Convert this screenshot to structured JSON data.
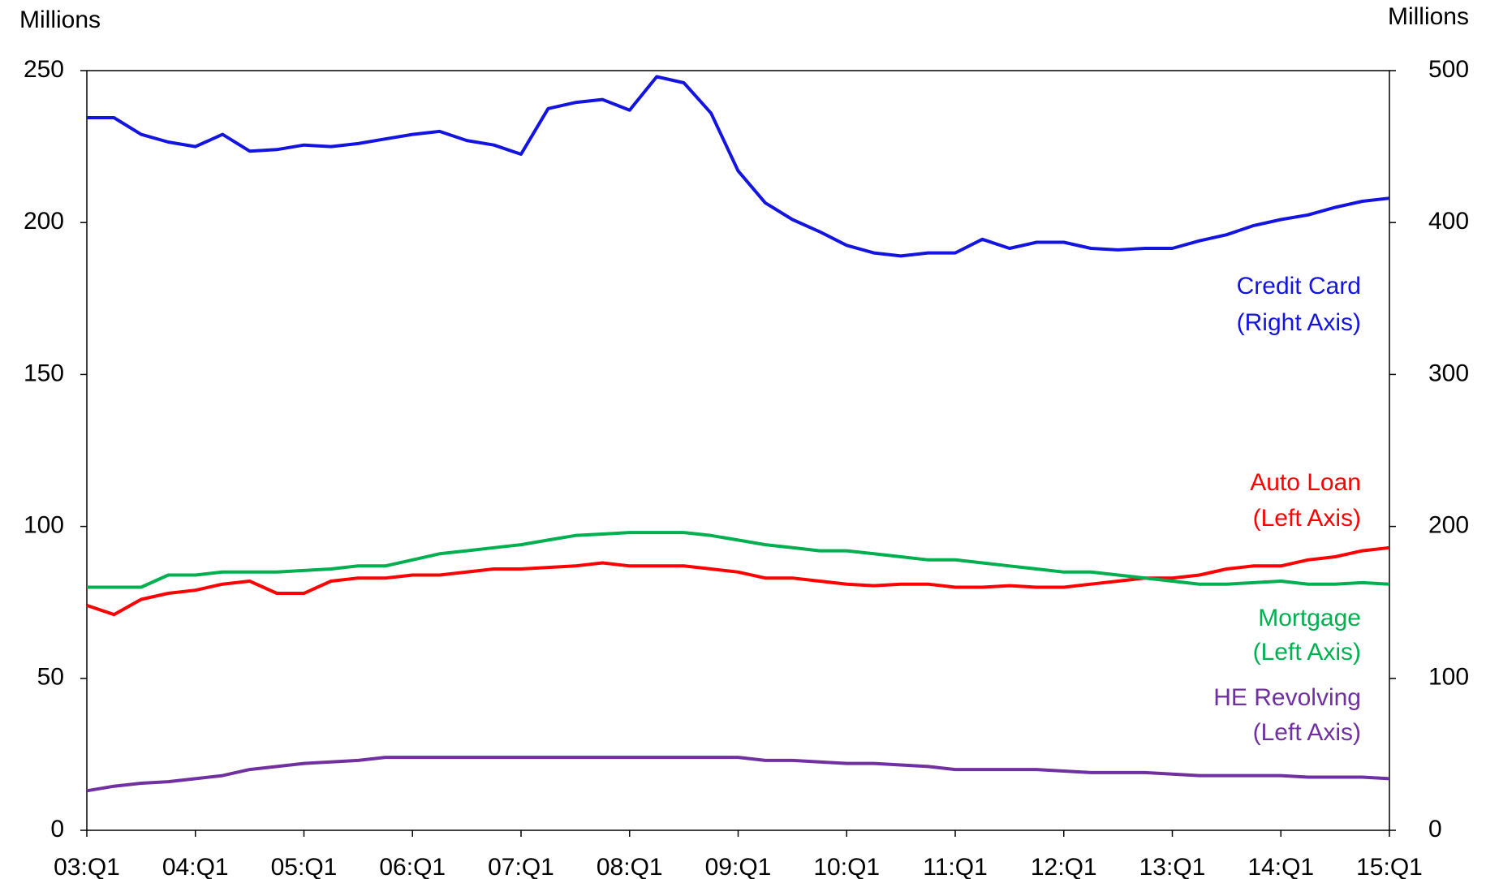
{
  "chart_data": {
    "type": "line",
    "ylabel": "Millions",
    "y2label": "Millions",
    "categories": [
      "03:Q1",
      null,
      null,
      null,
      "04:Q1",
      null,
      null,
      null,
      "05:Q1",
      null,
      null,
      null,
      "06:Q1",
      null,
      null,
      null,
      "07:Q1",
      null,
      null,
      null,
      "08:Q1",
      null,
      null,
      null,
      "09:Q1",
      null,
      null,
      null,
      "10:Q1",
      null,
      null,
      null,
      "11:Q1",
      null,
      null,
      null,
      "12:Q1",
      null,
      null,
      null,
      "13:Q1",
      null,
      null,
      null,
      "14:Q1",
      null,
      null,
      null,
      "15:Q1"
    ],
    "ylim": [
      0,
      250
    ],
    "yticks": [
      0,
      50,
      100,
      150,
      200,
      250
    ],
    "y2lim": [
      0,
      500
    ],
    "y2ticks": [
      0,
      100,
      200,
      300,
      400,
      500
    ],
    "grid": false,
    "series": [
      {
        "name": "Credit Card",
        "axis_note": "(Right Axis)",
        "color": "#1414e0",
        "axis": "y2",
        "values": [
          469,
          469,
          458,
          453,
          450,
          458,
          447,
          448,
          451,
          450,
          452,
          455,
          458,
          460,
          454,
          451,
          445,
          475,
          479,
          481,
          474,
          496,
          492,
          472,
          434,
          413,
          402,
          394,
          385,
          380,
          378,
          380,
          380,
          389,
          383,
          387,
          387,
          383,
          382,
          383,
          383,
          388,
          392,
          398,
          402,
          405,
          410,
          414,
          416
        ]
      },
      {
        "name": "Auto Loan",
        "axis_note": "(Left Axis)",
        "color": "#ff0000",
        "values": [
          74,
          71,
          76,
          78,
          79,
          81,
          82,
          78,
          78,
          82,
          83,
          83,
          84,
          84,
          85,
          86,
          86,
          86.5,
          87,
          88,
          87,
          87,
          87,
          86,
          85,
          83,
          83,
          82,
          81,
          80.5,
          81,
          81,
          80,
          80,
          80.5,
          80,
          80,
          81,
          82,
          83,
          83,
          84,
          86,
          87,
          87,
          89,
          90,
          92,
          93
        ]
      },
      {
        "name": "Mortgage",
        "axis_note": "(Left Axis)",
        "color": "#00b050",
        "values": [
          80,
          80,
          80,
          84,
          84,
          85,
          85,
          85,
          85.5,
          86,
          87,
          87,
          89,
          91,
          92,
          93,
          94,
          95.5,
          97,
          97.5,
          98,
          98,
          98,
          97,
          95.5,
          94,
          93,
          92,
          92,
          91,
          90,
          89,
          89,
          88,
          87,
          86,
          85,
          85,
          84,
          83,
          82,
          81,
          81,
          81.5,
          82,
          81,
          81,
          81.5,
          81
        ]
      },
      {
        "name": "HE Revolving",
        "axis_note": "(Left Axis)",
        "color": "#7030a0",
        "values": [
          13,
          14.5,
          15.5,
          16,
          17,
          18,
          20,
          21,
          22,
          22.5,
          23,
          24,
          24,
          24,
          24,
          24,
          24,
          24,
          24,
          24,
          24,
          24,
          24,
          24,
          24,
          23,
          23,
          22.5,
          22,
          22,
          21.5,
          21,
          20,
          20,
          20,
          20,
          19.5,
          19,
          19,
          19,
          18.5,
          18,
          18,
          18,
          18,
          17.5,
          17.5,
          17.5,
          17
        ]
      }
    ]
  }
}
